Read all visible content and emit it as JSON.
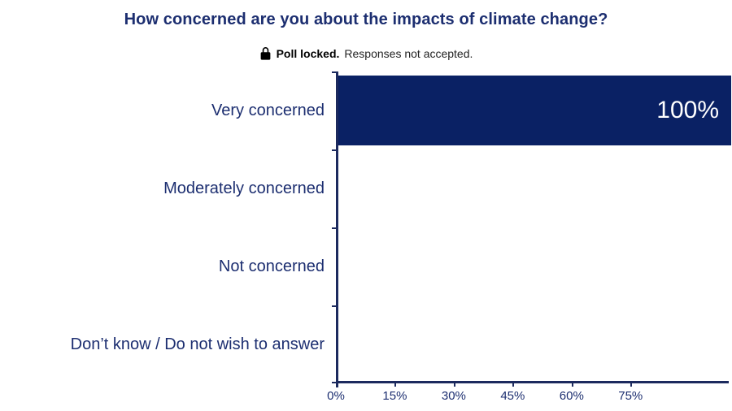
{
  "header": {
    "title": "How concerned are you about the impacts of climate change?"
  },
  "banner": {
    "locked_label": "Poll locked.",
    "locked_detail": "Responses not accepted."
  },
  "chart_data": {
    "type": "bar",
    "orientation": "horizontal",
    "title": "How concerned are you about the impacts of climate change?",
    "categories": [
      "Very concerned",
      "Moderately concerned",
      "Not concerned",
      "Don’t know / Do not wish to answer"
    ],
    "values": [
      100,
      0,
      0,
      0
    ],
    "bar_labels": [
      "100%",
      "",
      "",
      ""
    ],
    "x_ticks": [
      {
        "value": 0,
        "label": "0%"
      },
      {
        "value": 15,
        "label": "15%"
      },
      {
        "value": 30,
        "label": "30%"
      },
      {
        "value": 45,
        "label": "45%"
      },
      {
        "value": 60,
        "label": "60%"
      },
      {
        "value": 75,
        "label": "75%"
      }
    ],
    "xlim": [
      0,
      100
    ],
    "xlabel": "",
    "ylabel": "",
    "grid": false,
    "legend": "none",
    "value_label_position": "inside-end"
  },
  "colors": {
    "bar": "#0a2164",
    "navy-text": "#1c2e70",
    "axis": "#1c2a5e",
    "value-label": "#ffffff",
    "banner-text": "#1a1a1a"
  }
}
